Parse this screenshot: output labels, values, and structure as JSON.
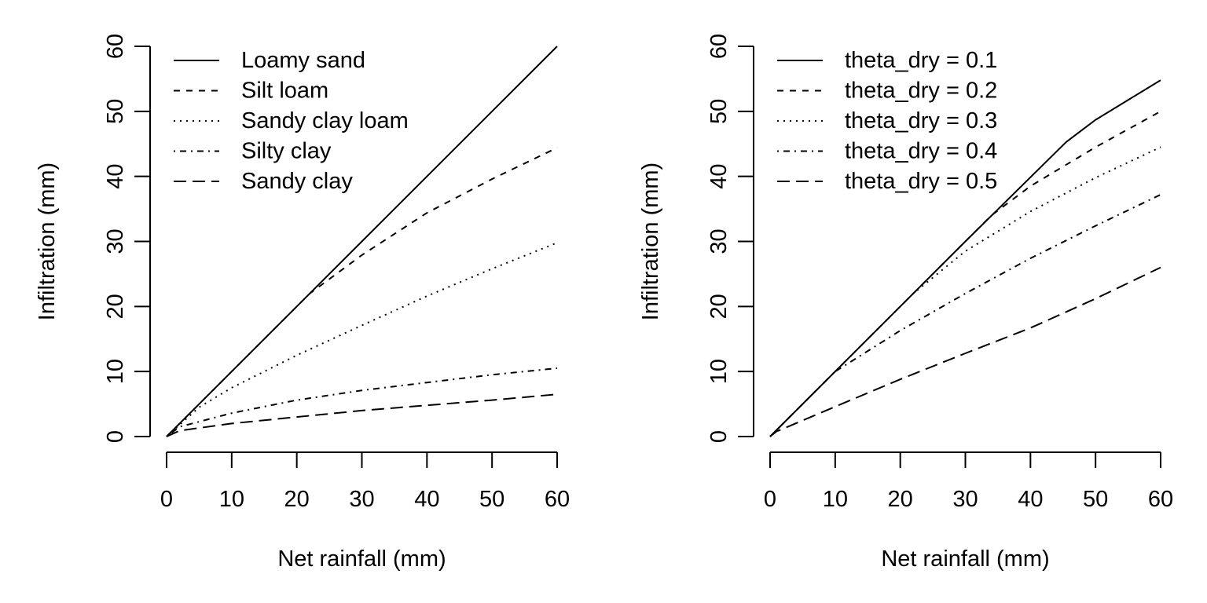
{
  "chart_data": [
    {
      "type": "line",
      "title": "",
      "xlabel": "Net rainfall (mm)",
      "ylabel": "Infiltration (mm)",
      "xlim": [
        0,
        60
      ],
      "ylim": [
        0,
        60
      ],
      "xticks": [
        0,
        10,
        20,
        30,
        40,
        50,
        60
      ],
      "yticks": [
        0,
        10,
        20,
        30,
        40,
        50,
        60
      ],
      "grid": false,
      "legend_position": "top-left",
      "series": [
        {
          "name": "Loamy sand",
          "line_style": "solid",
          "x": [
            0,
            10,
            20,
            30,
            40,
            50,
            60
          ],
          "y": [
            0,
            10,
            20,
            30,
            40,
            50,
            60
          ]
        },
        {
          "name": "Silt loam",
          "line_style": "dashed",
          "x": [
            0,
            10,
            20,
            22,
            30,
            40,
            50,
            60
          ],
          "y": [
            0,
            10,
            20,
            22,
            27.9,
            34.4,
            39.6,
            44.4
          ]
        },
        {
          "name": "Sandy clay loam",
          "line_style": "dotted",
          "x": [
            0,
            5,
            10,
            20,
            30,
            40,
            50,
            60
          ],
          "y": [
            0,
            4.5,
            7.5,
            12.5,
            17.1,
            21.6,
            25.8,
            29.8
          ]
        },
        {
          "name": "Silty clay",
          "line_style": "dotdash",
          "x": [
            0,
            2,
            10,
            20,
            30,
            40,
            50,
            60
          ],
          "y": [
            0,
            1.5,
            3.6,
            5.6,
            7.1,
            8.3,
            9.5,
            10.5
          ]
        },
        {
          "name": "Sandy clay",
          "line_style": "longdash",
          "x": [
            0,
            2,
            10,
            20,
            30,
            40,
            50,
            60
          ],
          "y": [
            0,
            0.9,
            2.0,
            3.0,
            4.0,
            4.8,
            5.6,
            6.5
          ]
        }
      ]
    },
    {
      "type": "line",
      "title": "",
      "xlabel": "Net rainfall (mm)",
      "ylabel": "Infiltration (mm)",
      "xlim": [
        0,
        60
      ],
      "ylim": [
        0,
        60
      ],
      "xticks": [
        0,
        10,
        20,
        30,
        40,
        50,
        60
      ],
      "yticks": [
        0,
        10,
        20,
        30,
        40,
        50,
        60
      ],
      "grid": false,
      "legend_position": "top-left",
      "series": [
        {
          "name": "theta_dry = 0.1",
          "line_style": "solid",
          "x": [
            0,
            10,
            20,
            30,
            45.5,
            50,
            60
          ],
          "y": [
            0,
            10,
            20,
            30,
            45.3,
            48.7,
            54.8
          ]
        },
        {
          "name": "theta_dry = 0.2",
          "line_style": "dashed",
          "x": [
            0,
            10,
            20,
            30,
            34,
            40,
            50,
            60
          ],
          "y": [
            0,
            10,
            20,
            30,
            34,
            38.5,
            44.5,
            50.0
          ]
        },
        {
          "name": "theta_dry = 0.3",
          "line_style": "dotted",
          "x": [
            0,
            10,
            20,
            22,
            30,
            40,
            50,
            60
          ],
          "y": [
            0,
            10,
            20,
            22,
            28.5,
            34.6,
            39.8,
            44.5
          ]
        },
        {
          "name": "theta_dry = 0.4",
          "line_style": "dotdash",
          "x": [
            0,
            10,
            20,
            30,
            40,
            50,
            60
          ],
          "y": [
            0,
            10,
            16.3,
            22.0,
            27.4,
            32.4,
            37.2
          ]
        },
        {
          "name": "theta_dry = 0.5",
          "line_style": "longdash",
          "x": [
            0,
            1,
            2,
            10,
            20,
            30,
            40,
            50,
            60
          ],
          "y": [
            0,
            0.8,
            1.2,
            4.6,
            8.8,
            12.8,
            16.7,
            21.2,
            26.0
          ]
        }
      ]
    }
  ]
}
